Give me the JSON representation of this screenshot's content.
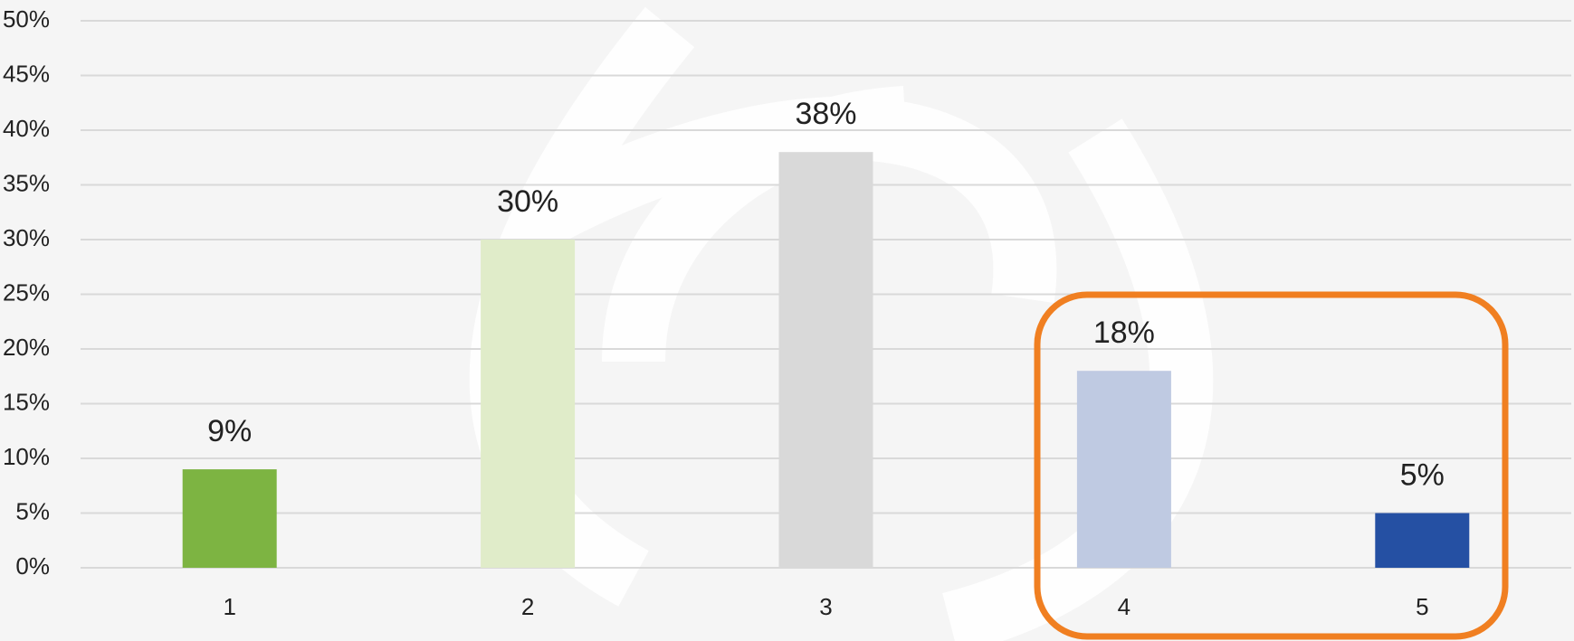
{
  "chart_data": {
    "type": "bar",
    "categories": [
      "1",
      "2",
      "3",
      "4",
      "5"
    ],
    "values": [
      9,
      30,
      38,
      18,
      5
    ],
    "value_labels": [
      "9%",
      "30%",
      "38%",
      "18%",
      "5%"
    ],
    "colors": [
      "#7db442",
      "#e0ecc9",
      "#d9d9d9",
      "#bfcae2",
      "#2550a3"
    ],
    "ylim": [
      0,
      50
    ],
    "yticks": [
      {
        "value": 0,
        "label": "0%"
      },
      {
        "value": 5,
        "label": "5%"
      },
      {
        "value": 10,
        "label": "10%"
      },
      {
        "value": 15,
        "label": "15%"
      },
      {
        "value": 20,
        "label": "20%"
      },
      {
        "value": 25,
        "label": "25%"
      },
      {
        "value": 30,
        "label": "30%"
      },
      {
        "value": 35,
        "label": "35%"
      },
      {
        "value": 40,
        "label": "40%"
      },
      {
        "value": 45,
        "label": "45%"
      },
      {
        "value": 50,
        "label": "50%"
      }
    ],
    "grid": true
  }
}
